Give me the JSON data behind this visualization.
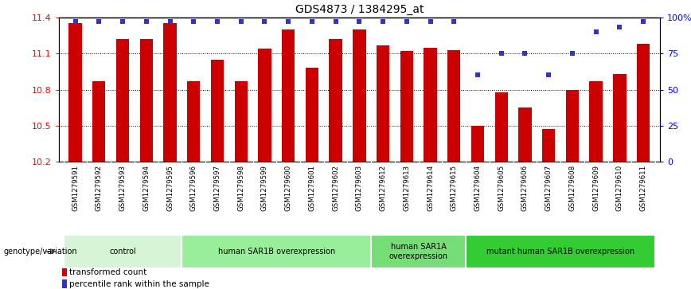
{
  "title": "GDS4873 / 1384295_at",
  "samples": [
    "GSM1279591",
    "GSM1279592",
    "GSM1279593",
    "GSM1279594",
    "GSM1279595",
    "GSM1279596",
    "GSM1279597",
    "GSM1279598",
    "GSM1279599",
    "GSM1279600",
    "GSM1279601",
    "GSM1279602",
    "GSM1279603",
    "GSM1279612",
    "GSM1279613",
    "GSM1279614",
    "GSM1279615",
    "GSM1279604",
    "GSM1279605",
    "GSM1279606",
    "GSM1279607",
    "GSM1279608",
    "GSM1279609",
    "GSM1279610",
    "GSM1279611"
  ],
  "bar_values": [
    11.35,
    10.87,
    11.22,
    11.22,
    11.35,
    10.87,
    11.05,
    10.87,
    11.14,
    11.3,
    10.98,
    11.22,
    11.3,
    11.17,
    11.12,
    11.15,
    11.13,
    10.5,
    10.78,
    10.65,
    10.47,
    10.8,
    10.87,
    10.93,
    11.18
  ],
  "percentile_values": [
    97,
    97,
    97,
    97,
    97,
    97,
    97,
    97,
    97,
    97,
    97,
    97,
    97,
    97,
    97,
    97,
    97,
    60,
    75,
    75,
    60,
    75,
    90,
    93,
    97
  ],
  "bar_color": "#cc0000",
  "dot_color": "#3333cc",
  "ylim_left": [
    10.2,
    11.4
  ],
  "ylim_right": [
    0,
    100
  ],
  "yticks_left": [
    10.2,
    10.5,
    10.8,
    11.1,
    11.4
  ],
  "ytick_labels_left": [
    "10.2",
    "10.5",
    "10.8",
    "11.1",
    "11.4"
  ],
  "yticks_right": [
    0,
    25,
    50,
    75,
    100
  ],
  "ytick_labels_right": [
    "0",
    "25",
    "50",
    "75",
    "100%"
  ],
  "groups": [
    {
      "label": "control",
      "start": 0,
      "end": 5,
      "color": "#d6f5d6"
    },
    {
      "label": "human SAR1B overexpression",
      "start": 5,
      "end": 13,
      "color": "#99ee99"
    },
    {
      "label": "human SAR1A\noverexpression",
      "start": 13,
      "end": 17,
      "color": "#77dd77"
    },
    {
      "label": "mutant human SAR1B overexpression",
      "start": 17,
      "end": 25,
      "color": "#33cc33"
    }
  ],
  "legend_label_bar": "transformed count",
  "legend_label_dot": "percentile rank within the sample",
  "genotype_label": "genotype/variation",
  "sample_bg_color": "#c8c8c8",
  "sample_divider_color": "#ffffff"
}
